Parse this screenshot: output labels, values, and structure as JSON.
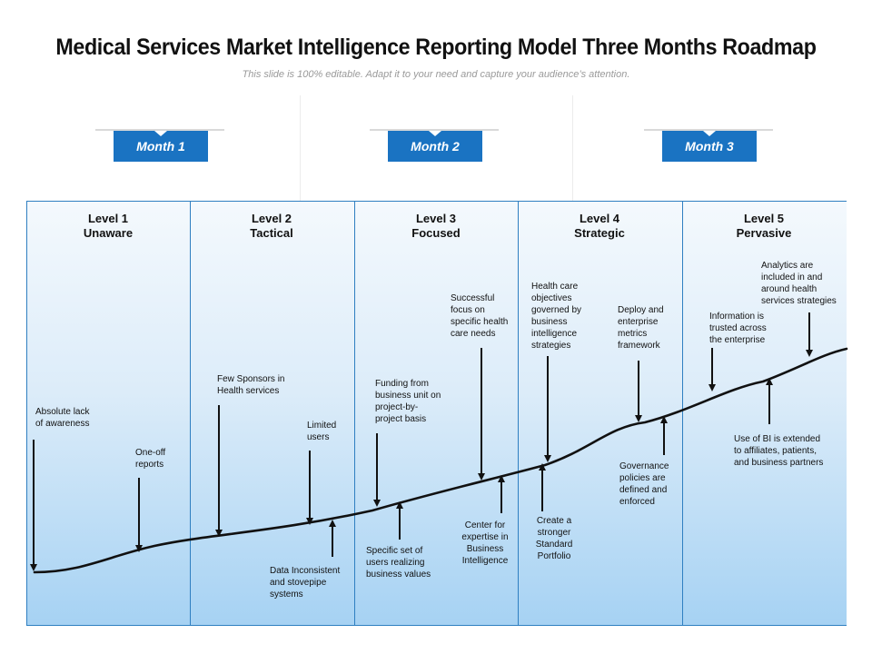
{
  "title": "Medical Services Market Intelligence Reporting Model Three Months Roadmap",
  "subtitle": "This slide is 100% editable. Adapt it to your need and capture your audience’s attention.",
  "months": [
    {
      "label": "Month 1"
    },
    {
      "label": "Month 2"
    },
    {
      "label": "Month 3"
    }
  ],
  "levels": [
    {
      "level": "Level 1",
      "name": "Unaware"
    },
    {
      "level": "Level 2",
      "name": "Tactical"
    },
    {
      "level": "Level 3",
      "name": "Focused"
    },
    {
      "level": "Level 4",
      "name": "Strategic"
    },
    {
      "level": "Level 5",
      "name": "Pervasive"
    }
  ],
  "notes": {
    "absolute_lack": "Absolute lack\nof awareness",
    "one_off": "One-off\nreports",
    "few_sponsors": "Few Sponsors in\nHealth services",
    "limited_users": "Limited\nusers",
    "data_inconsistent": "Data Inconsistent\nand stovepipe\nsystems",
    "funding": "Funding from\nbusiness unit on\nproject-by-\nproject basis",
    "successful_focus": "Successful\nfocus on\nspecific health\ncare needs",
    "specific_set": "Specific set of\nusers realizing\nbusiness values",
    "center_expertise": "Center for\nexpertise in\nBusiness\nIntelligence",
    "health_objectives": "Health care\nobjectives\ngoverned by\nbusiness\nintelligence\nstrategies",
    "create_stronger": "Create a\nstronger\nStandard\nPortfolio",
    "deploy": "Deploy and\nenterprise\nmetrics\nframework",
    "governance": "Governance\npolicies are\ndefined and\nenforced",
    "information_trusted": "Information is\ntrusted across\nthe enterprise",
    "analytics": "Analytics are\nincluded in and\naround health\nservices strategies",
    "use_of_bi": "Use of BI is extended\nto affiliates, patients,\nand business partners"
  }
}
